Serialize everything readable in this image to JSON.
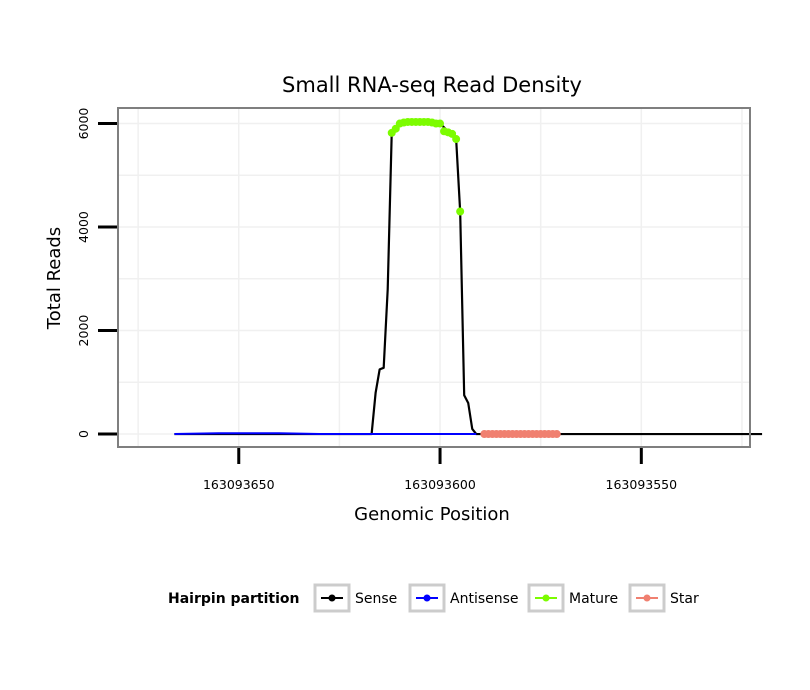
{
  "chart_data": {
    "type": "line",
    "title": "Small RNA-seq Read Density",
    "xlabel": "Genomic Position",
    "ylabel": "Total Reads",
    "x_reversed": true,
    "xlim": [
      163093680,
      163093523
    ],
    "ylim": [
      -250,
      6300
    ],
    "x_ticks": [
      163093650,
      163093600,
      163093550
    ],
    "x_tick_labels": [
      "163093650",
      "163093600",
      "163093550"
    ],
    "y_ticks": [
      0,
      2000,
      4000,
      6000
    ],
    "y_tick_labels": [
      "0",
      "2000",
      "4000",
      "6000"
    ],
    "grid": true,
    "legend": {
      "title": "Hairpin partition",
      "position": "bottom",
      "entries": [
        {
          "label": "Sense",
          "color": "#000000"
        },
        {
          "label": "Antisense",
          "color": "#0000ff"
        },
        {
          "label": "Mature",
          "color": "#7cfc00"
        },
        {
          "label": "Star",
          "color": "#f08070"
        }
      ]
    },
    "series": [
      {
        "name": "Sense",
        "color": "#000000",
        "points": [
          [
            163093666,
            0
          ],
          [
            163093625,
            0
          ],
          [
            163093617,
            0
          ],
          [
            163093616,
            800
          ],
          [
            163093615,
            1250
          ],
          [
            163093614,
            1280
          ],
          [
            163093613,
            2800
          ],
          [
            163093612,
            5820
          ],
          [
            163093611,
            5900
          ],
          [
            163093610,
            6000
          ],
          [
            163093606,
            6030
          ],
          [
            163093603,
            6030
          ],
          [
            163093600,
            6000
          ],
          [
            163093598,
            5850
          ],
          [
            163093597,
            5800
          ],
          [
            163093596,
            5700
          ],
          [
            163093595,
            4300
          ],
          [
            163093594,
            750
          ],
          [
            163093593,
            600
          ],
          [
            163093592,
            100
          ],
          [
            163093591,
            0
          ],
          [
            163093580,
            0
          ],
          [
            163093520,
            0
          ]
        ]
      },
      {
        "name": "Antisense",
        "color": "#0000ff",
        "points": [
          [
            163093666,
            0
          ],
          [
            163093655,
            15
          ],
          [
            163093640,
            15
          ],
          [
            163093630,
            0
          ],
          [
            163093591,
            0
          ]
        ]
      },
      {
        "name": "Mature",
        "color": "#7cfc00",
        "points": [
          [
            163093612,
            5820
          ],
          [
            163093611,
            5900
          ],
          [
            163093610,
            6000
          ],
          [
            163093609,
            6020
          ],
          [
            163093608,
            6030
          ],
          [
            163093607,
            6030
          ],
          [
            163093606,
            6030
          ],
          [
            163093605,
            6030
          ],
          [
            163093604,
            6030
          ],
          [
            163093603,
            6030
          ],
          [
            163093602,
            6020
          ],
          [
            163093601,
            6000
          ],
          [
            163093600,
            6000
          ],
          [
            163093599,
            5850
          ],
          [
            163093598,
            5830
          ],
          [
            163093597,
            5800
          ],
          [
            163093596,
            5700
          ],
          [
            163093595,
            4300
          ]
        ]
      },
      {
        "name": "Star",
        "color": "#f08070",
        "points": [
          [
            163093589,
            0
          ],
          [
            163093588,
            0
          ],
          [
            163093587,
            0
          ],
          [
            163093586,
            0
          ],
          [
            163093585,
            0
          ],
          [
            163093584,
            0
          ],
          [
            163093583,
            0
          ],
          [
            163093582,
            0
          ],
          [
            163093581,
            0
          ],
          [
            163093580,
            0
          ],
          [
            163093579,
            0
          ],
          [
            163093578,
            0
          ],
          [
            163093577,
            0
          ],
          [
            163093576,
            0
          ],
          [
            163093575,
            0
          ],
          [
            163093574,
            0
          ],
          [
            163093573,
            0
          ],
          [
            163093572,
            0
          ],
          [
            163093571,
            0
          ]
        ]
      }
    ]
  }
}
